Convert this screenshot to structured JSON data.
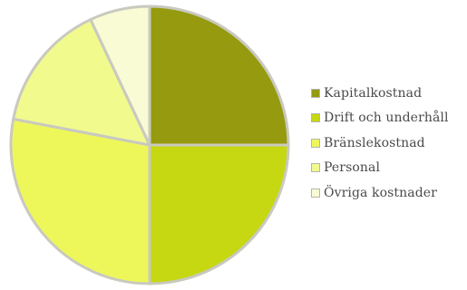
{
  "chart_data": {
    "type": "pie",
    "title": "",
    "legend_position": "right",
    "slice_border_color": "#c9c9c0",
    "slices": [
      {
        "label": "Kapitalkostnad",
        "value": 25,
        "color": "#969a0e"
      },
      {
        "label": "Drift och underhåll",
        "value": 25,
        "color": "#c6d811"
      },
      {
        "label": "Bränslekostnad",
        "value": 28,
        "color": "#eef75a"
      },
      {
        "label": "Personal",
        "value": 15,
        "color": "#f1fa8d"
      },
      {
        "label": "Övriga kostnader",
        "value": 7,
        "color": "#f8fbd3"
      }
    ]
  }
}
